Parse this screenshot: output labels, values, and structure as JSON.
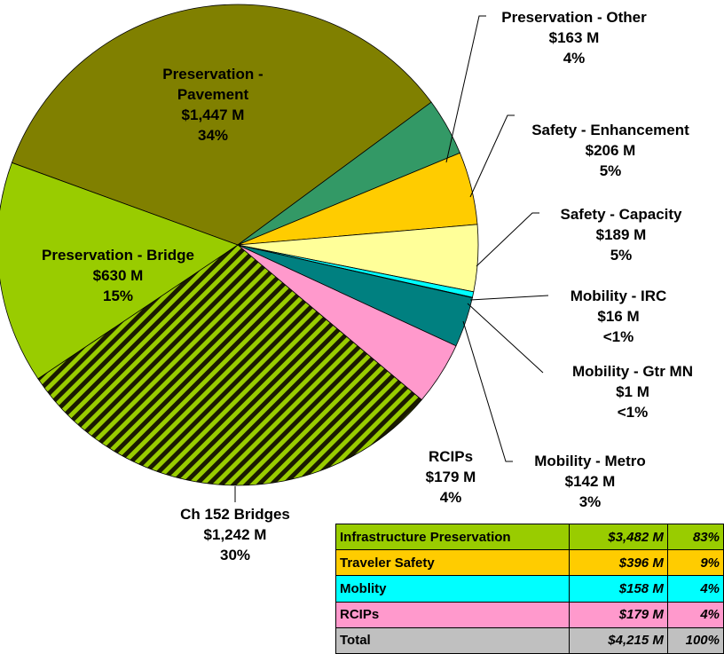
{
  "chart_data": {
    "type": "pie",
    "categories": [
      "Preservation - Pavement",
      "Preservation - Other",
      "Safety - Enhancement",
      "Safety - Capacity",
      "Mobility - IRC",
      "Mobility - Gtr MN",
      "Mobility - Metro",
      "RCIPs",
      "Ch 152 Bridges",
      "Preservation - Bridge"
    ],
    "values": [
      1447,
      163,
      206,
      189,
      16,
      1,
      142,
      179,
      1242,
      630
    ],
    "value_labels": [
      "$1,447 M",
      "$163 M",
      "$206 M",
      "$189 M",
      "$16 M",
      "$1 M",
      "$142 M",
      "$179 M",
      "$1,242 M",
      "$630 M"
    ],
    "percent_labels": [
      "34%",
      "4%",
      "5%",
      "5%",
      "<1%",
      "<1%",
      "3%",
      "4%",
      "30%",
      "15%"
    ],
    "colors": [
      "#808000",
      "#339966",
      "#FFCC00",
      "#FFFF99",
      "#00FFFF",
      "#33CCCC",
      "#008080",
      "#FF99CC",
      "#99CC00",
      "#99CC00"
    ],
    "hatched": [
      false,
      false,
      false,
      false,
      false,
      false,
      false,
      false,
      true,
      false
    ]
  },
  "table": {
    "rows": [
      [
        "Infrastructure Preservation",
        "$3,482 M",
        "83%"
      ],
      [
        "Traveler Safety",
        "$396 M",
        "9%"
      ],
      [
        "Moblity",
        "$158 M",
        "4%"
      ],
      [
        "RCIPs",
        "$179 M",
        "4%"
      ],
      [
        "Total",
        "$4,215 M",
        "100%"
      ]
    ],
    "colors": [
      "#99CC00",
      "#FFCC00",
      "#00FFFF",
      "#FF99CC",
      "#C0C0C0"
    ]
  }
}
